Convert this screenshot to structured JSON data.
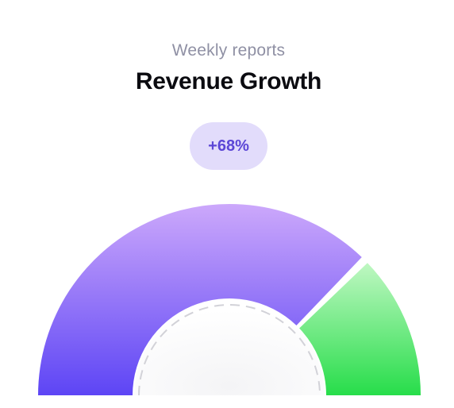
{
  "header": {
    "subtitle": "Weekly reports",
    "title": "Revenue Growth"
  },
  "badge": {
    "value": "+68%"
  },
  "chart_data": {
    "type": "gauge",
    "title": "Revenue Growth",
    "subtitle": "Weekly reports",
    "series": [
      {
        "value": 0.75,
        "color_start": "#cca8fb",
        "color_end": "#5d45f5"
      },
      {
        "value": 0.25,
        "color_start": "#bff7c2",
        "color_end": "#27dd4a"
      }
    ],
    "range": [
      0,
      1
    ],
    "annotation": "+68%"
  }
}
